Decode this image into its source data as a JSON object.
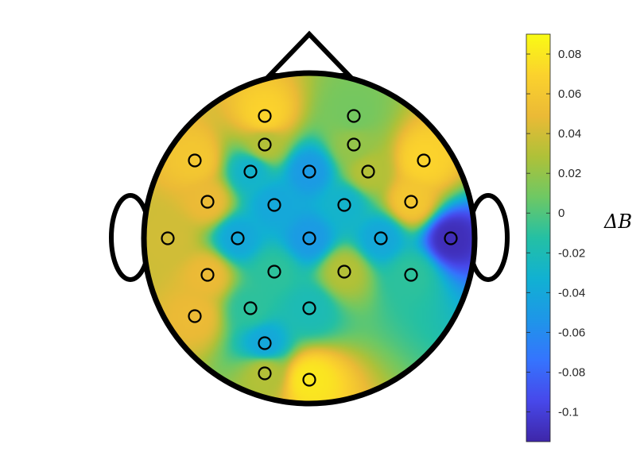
{
  "chart_data": {
    "type": "heatmap",
    "subtype": "eeg-scalp-topography",
    "colormap": "parula",
    "colorbar": {
      "label": "ΔB",
      "range": [
        -0.115,
        0.09
      ],
      "ticks": [
        0.08,
        0.06,
        0.04,
        0.02,
        0,
        -0.02,
        -0.04,
        -0.06,
        -0.08,
        -0.1
      ],
      "tick_labels": [
        "0.08",
        "0.06",
        "0.04",
        "0.02",
        "0",
        "-0.02",
        "-0.04",
        "-0.06",
        "-0.08",
        "-0.1"
      ],
      "placement": "right"
    },
    "electrodes": [
      {
        "x": -0.28,
        "y": 0.77,
        "value": 0.07
      },
      {
        "x": 0.28,
        "y": 0.77,
        "value": 0.01
      },
      {
        "x": -0.28,
        "y": 0.59,
        "value": 0.03
      },
      {
        "x": 0.28,
        "y": 0.59,
        "value": 0.02
      },
      {
        "x": -0.72,
        "y": 0.49,
        "value": 0.06
      },
      {
        "x": -0.37,
        "y": 0.42,
        "value": -0.03
      },
      {
        "x": 0.0,
        "y": 0.42,
        "value": -0.05
      },
      {
        "x": 0.37,
        "y": 0.42,
        "value": 0.03
      },
      {
        "x": 0.72,
        "y": 0.49,
        "value": 0.07
      },
      {
        "x": -0.64,
        "y": 0.23,
        "value": 0.05
      },
      {
        "x": -0.22,
        "y": 0.21,
        "value": -0.04
      },
      {
        "x": 0.22,
        "y": 0.21,
        "value": -0.03
      },
      {
        "x": 0.64,
        "y": 0.23,
        "value": 0.06
      },
      {
        "x": -0.89,
        "y": 0.0,
        "value": 0.04
      },
      {
        "x": -0.45,
        "y": 0.0,
        "value": -0.04
      },
      {
        "x": 0.0,
        "y": 0.0,
        "value": -0.05
      },
      {
        "x": 0.45,
        "y": 0.0,
        "value": -0.04
      },
      {
        "x": 0.89,
        "y": 0.0,
        "value": -0.11
      },
      {
        "x": -0.64,
        "y": -0.23,
        "value": 0.05
      },
      {
        "x": -0.22,
        "y": -0.21,
        "value": -0.01
      },
      {
        "x": 0.22,
        "y": -0.21,
        "value": 0.03
      },
      {
        "x": 0.64,
        "y": -0.23,
        "value": -0.01
      },
      {
        "x": -0.72,
        "y": -0.49,
        "value": 0.05
      },
      {
        "x": -0.37,
        "y": -0.44,
        "value": -0.01
      },
      {
        "x": 0.0,
        "y": -0.44,
        "value": -0.02
      },
      {
        "x": -0.28,
        "y": -0.66,
        "value": -0.04
      },
      {
        "x": -0.28,
        "y": -0.85,
        "value": 0.03
      },
      {
        "x": 0.0,
        "y": -0.89,
        "value": 0.08
      }
    ]
  }
}
